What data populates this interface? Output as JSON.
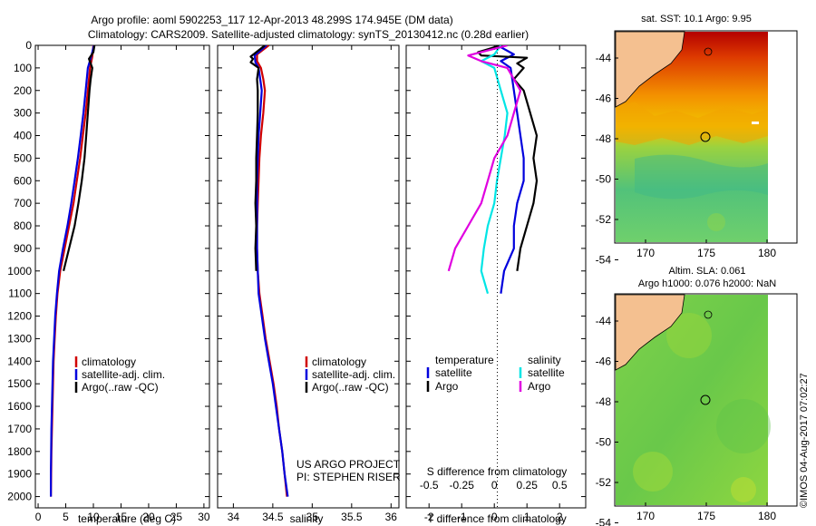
{
  "header": {
    "line1": "Argo profile: aoml 5902253_117 12-Apr-2013 48.299S 174.945E (DM data)",
    "line2": "Climatology: CARS2009. Satellite-adjusted climatology: synTS_20130412.nc (0.28d earlier)"
  },
  "colors": {
    "climatology": "#d00000",
    "satellite": "#0000dd",
    "argo": "#000000",
    "sal_satellite": "#00e5e5",
    "sal_argo": "#e000e0"
  },
  "chart_data": [
    {
      "id": "temperature",
      "type": "line",
      "xlabel": "temperature (deg C)",
      "ylabel": "",
      "xlim": [
        -0.5,
        31
      ],
      "ylim": [
        2050,
        0
      ],
      "xticks": [
        0,
        5,
        10,
        15,
        20,
        25,
        30
      ],
      "yticks": [
        0,
        100,
        200,
        300,
        400,
        500,
        600,
        700,
        800,
        900,
        1000,
        1100,
        1200,
        1300,
        1400,
        1500,
        1600,
        1700,
        1800,
        1900,
        2000
      ],
      "legend": [
        "climatology",
        "satellite-adj. clim.",
        "Argo(..raw -QC)"
      ],
      "legend_position": "lower-left",
      "series": [
        {
          "name": "climatology",
          "color": "#d00000",
          "points": [
            [
              10.0,
              0
            ],
            [
              9.8,
              50
            ],
            [
              9.4,
              100
            ],
            [
              9.0,
              200
            ],
            [
              8.6,
              300
            ],
            [
              8.1,
              400
            ],
            [
              7.6,
              500
            ],
            [
              7.0,
              600
            ],
            [
              6.4,
              700
            ],
            [
              5.6,
              800
            ],
            [
              4.8,
              900
            ],
            [
              4.0,
              1000
            ],
            [
              3.5,
              1100
            ],
            [
              3.2,
              1200
            ],
            [
              3.0,
              1300
            ],
            [
              2.8,
              1400
            ],
            [
              2.7,
              1500
            ],
            [
              2.6,
              1600
            ],
            [
              2.5,
              1700
            ],
            [
              2.4,
              1800
            ],
            [
              2.35,
              1900
            ],
            [
              2.3,
              2000
            ]
          ]
        },
        {
          "name": "satellite-adj. clim.",
          "color": "#0000dd",
          "points": [
            [
              10.1,
              0
            ],
            [
              9.7,
              40
            ],
            [
              9.0,
              100
            ],
            [
              8.6,
              200
            ],
            [
              8.2,
              300
            ],
            [
              7.7,
              400
            ],
            [
              7.2,
              500
            ],
            [
              6.6,
              600
            ],
            [
              6.0,
              700
            ],
            [
              5.3,
              800
            ],
            [
              4.5,
              900
            ],
            [
              3.8,
              1000
            ],
            [
              3.4,
              1100
            ],
            [
              3.1,
              1200
            ],
            [
              2.9,
              1300
            ],
            [
              2.7,
              1400
            ],
            [
              2.6,
              1500
            ],
            [
              2.5,
              1600
            ],
            [
              2.4,
              1700
            ],
            [
              2.35,
              1800
            ],
            [
              2.3,
              1900
            ],
            [
              2.3,
              2000
            ]
          ]
        },
        {
          "name": "Argo(..raw -QC)",
          "color": "#000000",
          "points": [
            [
              10.2,
              0
            ],
            [
              10.0,
              30
            ],
            [
              9.2,
              60
            ],
            [
              9.8,
              100
            ],
            [
              9.5,
              150
            ],
            [
              9.3,
              200
            ],
            [
              9.0,
              300
            ],
            [
              8.7,
              400
            ],
            [
              8.4,
              500
            ],
            [
              7.9,
              600
            ],
            [
              7.3,
              700
            ],
            [
              6.6,
              800
            ],
            [
              5.6,
              900
            ],
            [
              4.6,
              1000
            ]
          ]
        }
      ]
    },
    {
      "id": "salinity",
      "type": "line",
      "xlabel": "salinity",
      "ylabel": "",
      "xlim": [
        33.8,
        36.1
      ],
      "ylim": [
        2050,
        0
      ],
      "xticks": [
        34,
        34.5,
        35,
        35.5,
        36
      ],
      "legend": [
        "climatology",
        "satellite-adj. clim.",
        "Argo(..raw -QC)"
      ],
      "legend_position": "lower-left",
      "annotation": [
        "US ARGO PROJECT",
        "PI: STEPHEN RISER"
      ],
      "series": [
        {
          "name": "climatology",
          "color": "#d00000",
          "points": [
            [
              34.45,
              0
            ],
            [
              34.3,
              40
            ],
            [
              34.3,
              70
            ],
            [
              34.35,
              100
            ],
            [
              34.38,
              150
            ],
            [
              34.4,
              200
            ],
            [
              34.38,
              300
            ],
            [
              34.35,
              400
            ],
            [
              34.33,
              500
            ],
            [
              34.32,
              600
            ],
            [
              34.31,
              700
            ],
            [
              34.3,
              800
            ],
            [
              34.3,
              900
            ],
            [
              34.31,
              1000
            ],
            [
              34.33,
              1100
            ],
            [
              34.37,
              1200
            ],
            [
              34.41,
              1300
            ],
            [
              34.46,
              1400
            ],
            [
              34.51,
              1500
            ],
            [
              34.55,
              1600
            ],
            [
              34.58,
              1700
            ],
            [
              34.62,
              1800
            ],
            [
              34.65,
              1900
            ],
            [
              34.68,
              2000
            ]
          ]
        },
        {
          "name": "satellite-adj. clim.",
          "color": "#0000dd",
          "points": [
            [
              34.42,
              0
            ],
            [
              34.27,
              45
            ],
            [
              34.28,
              75
            ],
            [
              34.32,
              100
            ],
            [
              34.34,
              150
            ],
            [
              34.36,
              200
            ],
            [
              34.34,
              300
            ],
            [
              34.32,
              400
            ],
            [
              34.31,
              500
            ],
            [
              34.3,
              600
            ],
            [
              34.3,
              700
            ],
            [
              34.3,
              800
            ],
            [
              34.3,
              900
            ],
            [
              34.31,
              1000
            ],
            [
              34.32,
              1100
            ],
            [
              34.36,
              1200
            ],
            [
              34.4,
              1300
            ],
            [
              34.45,
              1400
            ],
            [
              34.5,
              1500
            ],
            [
              34.54,
              1600
            ],
            [
              34.58,
              1700
            ],
            [
              34.62,
              1800
            ],
            [
              34.65,
              1900
            ],
            [
              34.69,
              2000
            ]
          ]
        },
        {
          "name": "Argo(..raw -QC)",
          "color": "#000000",
          "points": [
            [
              34.4,
              0
            ],
            [
              34.22,
              50
            ],
            [
              34.25,
              60
            ],
            [
              34.22,
              75
            ],
            [
              34.32,
              100
            ],
            [
              34.3,
              150
            ],
            [
              34.31,
              200
            ],
            [
              34.31,
              300
            ],
            [
              34.3,
              400
            ],
            [
              34.29,
              500
            ],
            [
              34.29,
              600
            ],
            [
              34.28,
              700
            ],
            [
              34.29,
              800
            ],
            [
              34.28,
              900
            ],
            [
              34.29,
              1000
            ]
          ]
        }
      ]
    },
    {
      "id": "differences",
      "type": "line",
      "xlabel": "T difference from climatology",
      "xlabel2": "S difference from climatology",
      "xlim": [
        -2.7,
        2.8
      ],
      "xticks": [
        -2,
        -1,
        0,
        1,
        2
      ],
      "xticks2": [
        "-0.5",
        "-0.25",
        "0",
        "0.25",
        "0.5"
      ],
      "ylim": [
        2050,
        0
      ],
      "legend_left": {
        "title": "temperature",
        "items": [
          "satellite",
          "Argo"
        ]
      },
      "legend_right": {
        "title": "salinity",
        "items": [
          "satellite",
          "Argo"
        ]
      },
      "series": [
        {
          "name": "T satellite",
          "color": "#0000dd",
          "points": [
            [
              0.1,
              0
            ],
            [
              0.6,
              40
            ],
            [
              0.2,
              70
            ],
            [
              0.5,
              100
            ],
            [
              0.6,
              200
            ],
            [
              0.7,
              300
            ],
            [
              0.8,
              400
            ],
            [
              0.9,
              500
            ],
            [
              0.9,
              600
            ],
            [
              0.7,
              700
            ],
            [
              0.6,
              800
            ],
            [
              0.6,
              900
            ],
            [
              0.3,
              1000
            ],
            [
              0.2,
              1100
            ]
          ]
        },
        {
          "name": "T Argo",
          "color": "#000000",
          "points": [
            [
              0.2,
              0
            ],
            [
              -0.5,
              30
            ],
            [
              -0.4,
              45
            ],
            [
              1.0,
              55
            ],
            [
              0.7,
              80
            ],
            [
              0.9,
              100
            ],
            [
              0.6,
              150
            ],
            [
              0.9,
              200
            ],
            [
              1.1,
              300
            ],
            [
              1.3,
              400
            ],
            [
              1.2,
              500
            ],
            [
              1.3,
              600
            ],
            [
              1.2,
              700
            ],
            [
              1.0,
              800
            ],
            [
              0.8,
              900
            ],
            [
              0.7,
              1000
            ]
          ]
        },
        {
          "name": "S satellite",
          "color": "#00e5e5",
          "points": [
            [
              0.05,
              0
            ],
            [
              0.0,
              40
            ],
            [
              -0.1,
              70
            ],
            [
              0.0,
              100
            ],
            [
              0.05,
              200
            ],
            [
              0.1,
              300
            ],
            [
              0.08,
              400
            ],
            [
              0.05,
              500
            ],
            [
              0.02,
              600
            ],
            [
              0.0,
              700
            ],
            [
              -0.05,
              800
            ],
            [
              -0.08,
              900
            ],
            [
              -0.1,
              1000
            ],
            [
              -0.05,
              1100
            ]
          ]
        },
        {
          "name": "S Argo",
          "color": "#e000e0",
          "points": [
            [
              0.1,
              0
            ],
            [
              -0.2,
              45
            ],
            [
              -0.1,
              70
            ],
            [
              0.1,
              100
            ],
            [
              0.2,
              200
            ],
            [
              0.15,
              300
            ],
            [
              0.1,
              400
            ],
            [
              0.0,
              500
            ],
            [
              -0.05,
              600
            ],
            [
              -0.1,
              700
            ],
            [
              -0.2,
              800
            ],
            [
              -0.3,
              900
            ],
            [
              -0.35,
              1000
            ]
          ]
        }
      ]
    }
  ],
  "map_sst": {
    "title": "sat. SST: 10.1  Argo: 9.95",
    "yticks": [
      "-44",
      "-46",
      "-48",
      "-50",
      "-52",
      "-54"
    ],
    "xticks": [
      "170",
      "175",
      "180"
    ]
  },
  "map_sla": {
    "title_line1": "Altim. SLA: 0.061",
    "title_line2": "Argo h1000: 0.076 h2000: NaN",
    "yticks": [
      "-44",
      "-46",
      "-48",
      "-50",
      "-52",
      "-54"
    ],
    "xticks": [
      "170",
      "175",
      "180"
    ]
  },
  "credit": "©IMOS 04-Aug-2017 07:02:27"
}
